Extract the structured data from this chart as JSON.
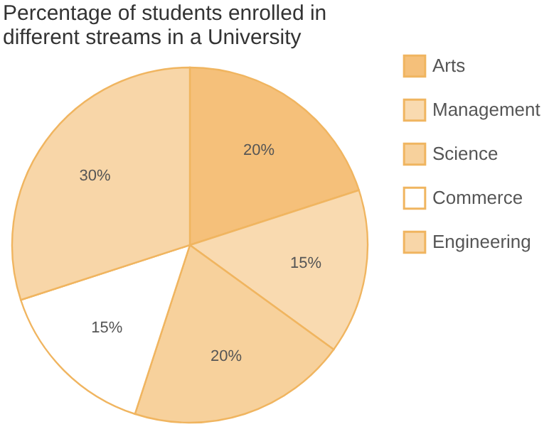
{
  "chart_data": {
    "type": "pie",
    "title": "Percentage of students enrolled in\ndifferent streams in a University",
    "categories": [
      "Arts",
      "Management",
      "Science",
      "Commerce",
      "Engineering"
    ],
    "values": [
      20,
      15,
      20,
      15,
      30
    ],
    "value_labels": [
      "20%",
      "15%",
      "20%",
      "15%",
      "30%"
    ],
    "colors": [
      "#f5c07a",
      "#f9dab0",
      "#f7d19c",
      "#ffffff",
      "#f8d6a8"
    ],
    "legend": "right"
  }
}
